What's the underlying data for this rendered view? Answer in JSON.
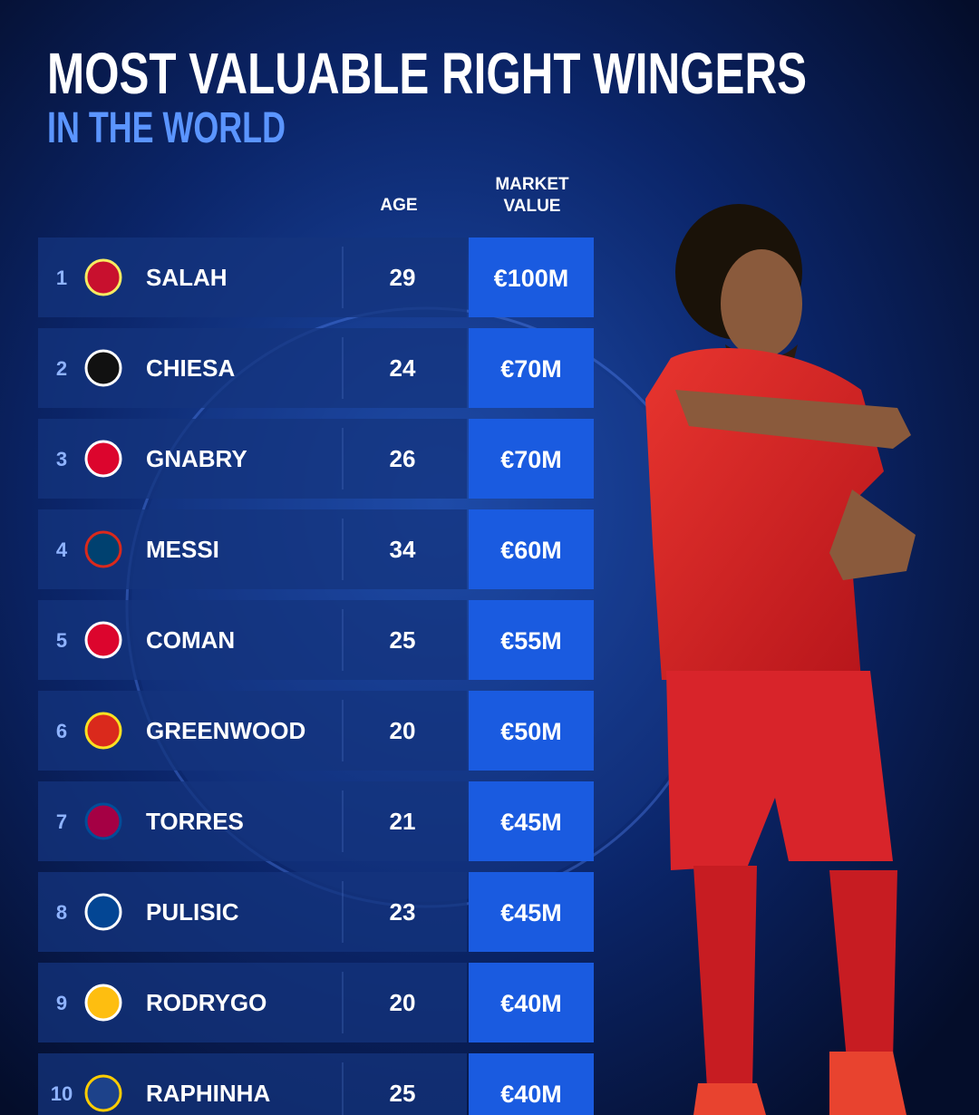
{
  "header": {
    "title": "MOST VALUABLE RIGHT WINGERS",
    "subtitle": "IN THE WORLD"
  },
  "table": {
    "columns": [
      "AGE",
      "MARKET VALUE"
    ],
    "rows": [
      {
        "rank": 1,
        "player": "SALAH",
        "age": 29,
        "value": "€100M"
      },
      {
        "rank": 2,
        "player": "CHIESA",
        "age": 24,
        "value": "€70M"
      },
      {
        "rank": 3,
        "player": "GNABRY",
        "age": 26,
        "value": "€70M"
      },
      {
        "rank": 4,
        "player": "MESSI",
        "age": 34,
        "value": "€60M"
      },
      {
        "rank": 5,
        "player": "COMAN",
        "age": 25,
        "value": "€55M"
      },
      {
        "rank": 6,
        "player": "GREENWOOD",
        "age": 20,
        "value": "€50M"
      },
      {
        "rank": 7,
        "player": "TORRES",
        "age": 21,
        "value": "€45M"
      },
      {
        "rank": 8,
        "player": "PULISIC",
        "age": 23,
        "value": "€45M"
      },
      {
        "rank": 9,
        "player": "RODRYGO",
        "age": 20,
        "value": "€40M"
      },
      {
        "rank": 10,
        "player": "RAPHINHA",
        "age": 25,
        "value": "€40M"
      }
    ]
  }
}
